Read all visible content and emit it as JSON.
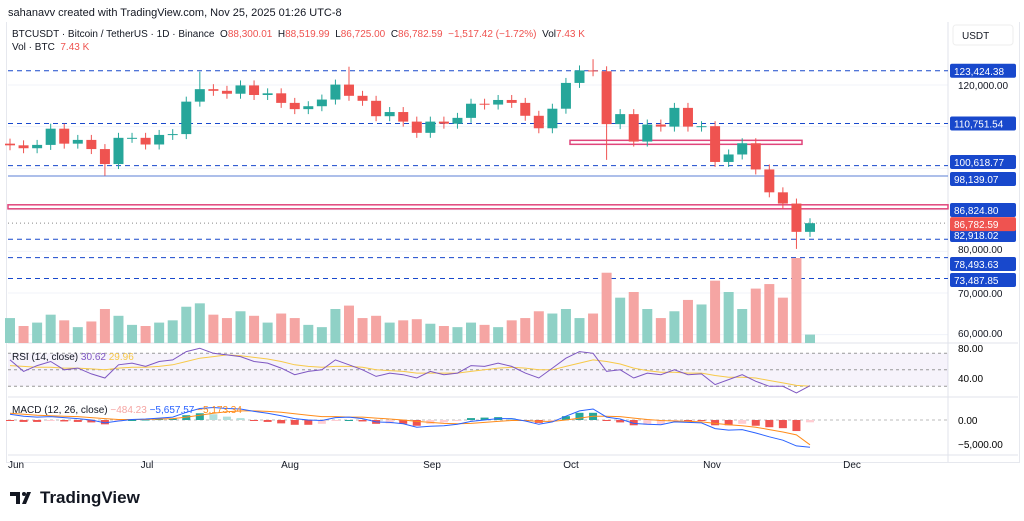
{
  "credit": "sahanavv created with TradingView.com, Nov 25, 2025 01:26 UTC-8",
  "legend": {
    "symbol": "BTCUSDT · Bitcoin / TetherUS · 1D · Binance",
    "o_label": "O",
    "o": "88,300.01",
    "h_label": "H",
    "h": "88,519.99",
    "l_label": "L",
    "l": "86,725.00",
    "c_label": "C",
    "c": "86,782.59",
    "change": "−1,517.42 (−1.72%)",
    "vol_label": "Vol",
    "vol": "7.43 K",
    "vol2_label": "Vol · BTC",
    "vol2": "7.43 K"
  },
  "logo": "TradingView",
  "colors": {
    "up": "#26a69a",
    "down": "#ef5350",
    "vol_up": "#8fd1c6",
    "vol_down": "#f5a5a3",
    "level": "#1848cc",
    "rsi": "#7e57c2",
    "rsi_ma": "#f7c948",
    "macd": "#2962ff",
    "signal": "#ff8c1a",
    "zone": "#e0457b"
  },
  "chart_data": {
    "type": "candlestick",
    "currency": "USDT",
    "x_ticks": [
      "Jun",
      "Jul",
      "Aug",
      "Sep",
      "Oct",
      "Nov",
      "Dec"
    ],
    "y_ticks": [
      "120,000.00",
      "80,000.00",
      "70,000.00",
      "60,000.00"
    ],
    "ylim": [
      58000,
      128000
    ],
    "closes": [
      105.5,
      104.8,
      105.6,
      109.5,
      105.9,
      106.8,
      104.6,
      101.0,
      107.3,
      107.3,
      105.7,
      108.0,
      108.2,
      116.0,
      119.0,
      118.6,
      117.9,
      119.9,
      117.6,
      118.0,
      115.7,
      114.2,
      114.9,
      116.5,
      120.1,
      117.4,
      116.2,
      112.5,
      113.5,
      111.2,
      108.5,
      111.2,
      110.7,
      112.1,
      115.5,
      115.3,
      116.4,
      115.7,
      112.6,
      109.6,
      114.3,
      120.5,
      123.5,
      123.3,
      110.6,
      113.0,
      106.4,
      110.5,
      110.0,
      114.5,
      110.0,
      110.1,
      101.5,
      103.3,
      106.0,
      99.7,
      94.2,
      91.5,
      84.7,
      86.78
    ],
    "wick_extremes": [
      {
        "index": 7,
        "low": 98.2
      },
      {
        "index": 14,
        "high": 123.2
      },
      {
        "index": 25,
        "high": 124.4
      },
      {
        "index": 43,
        "high": 126.2
      },
      {
        "index": 44,
        "low": 102.0
      },
      {
        "index": 58,
        "low": 80.6
      }
    ],
    "price_unit": "thousand USDT",
    "volume": [
      22,
      15,
      18,
      25,
      20,
      14,
      19,
      30,
      24,
      16,
      15,
      18,
      20,
      32,
      35,
      25,
      22,
      28,
      24,
      18,
      26,
      22,
      16,
      14,
      30,
      33,
      22,
      24,
      18,
      20,
      21,
      17,
      15,
      14,
      18,
      16,
      14,
      20,
      22,
      28,
      26,
      30,
      22,
      26,
      62,
      40,
      45,
      30,
      22,
      28,
      38,
      34,
      55,
      45,
      30,
      48,
      52,
      40,
      75,
      7.43
    ],
    "levels": [
      {
        "value": 123424.38,
        "label": "123,424.38",
        "style": "dashed"
      },
      {
        "value": 110751.54,
        "label": "110,751.54",
        "style": "dashed"
      },
      {
        "value": 100618.77,
        "label": "100,618.77",
        "style": "dashed"
      },
      {
        "value": 98139.07,
        "label": "98,139.07",
        "style": "solid"
      },
      {
        "value": 86824.8,
        "label": "86,824.80",
        "style": "zone"
      },
      {
        "value": 82918.02,
        "label": "82,918.02",
        "style": "dashed"
      },
      {
        "value": 78493.63,
        "label": "78,493.63",
        "style": "dashed"
      },
      {
        "value": 73487.85,
        "label": "73,487.85",
        "style": "dashed"
      }
    ],
    "last_price": {
      "value": 86782.59,
      "label": "86,782.59"
    },
    "rsi": {
      "title": "RSI (14, close)",
      "value": "30.62",
      "ma_value": "29.96",
      "tick_labels": [
        "80.00",
        "40.00"
      ],
      "ylim": [
        20,
        90
      ],
      "values": [
        62,
        48,
        55,
        60,
        50,
        52,
        45,
        40,
        56,
        58,
        54,
        60,
        62,
        72,
        76,
        70,
        68,
        66,
        60,
        58,
        52,
        44,
        48,
        50,
        62,
        56,
        50,
        42,
        46,
        44,
        40,
        48,
        44,
        46,
        55,
        54,
        58,
        54,
        46,
        40,
        52,
        64,
        72,
        70,
        48,
        50,
        40,
        46,
        44,
        50,
        44,
        45,
        32,
        38,
        44,
        36,
        30,
        30,
        22,
        30.62
      ],
      "ma": [
        55,
        54,
        53,
        53,
        52,
        52,
        51,
        50,
        52,
        53,
        53,
        54,
        56,
        60,
        64,
        66,
        68,
        67,
        65,
        63,
        60,
        56,
        54,
        53,
        54,
        54,
        53,
        50,
        49,
        48,
        46,
        46,
        46,
        46,
        48,
        50,
        52,
        53,
        52,
        50,
        50,
        54,
        58,
        62,
        60,
        57,
        52,
        49,
        47,
        47,
        46,
        46,
        43,
        41,
        41,
        40,
        37,
        34,
        31,
        29.96
      ]
    },
    "macd": {
      "title": "MACD (12, 26, close)",
      "hist_value": "−484.23",
      "macd_value": "−5,657.57",
      "signal_value": "−5,173.34",
      "tick_labels": [
        "0.00",
        "−5,000.00"
      ],
      "ylim": [
        -7000,
        3000
      ],
      "macd": [
        1200,
        800,
        600,
        700,
        500,
        300,
        0,
        -600,
        -200,
        100,
        200,
        400,
        600,
        1600,
        2400,
        2600,
        2400,
        2300,
        1800,
        1400,
        900,
        300,
        0,
        -100,
        500,
        600,
        300,
        -400,
        -500,
        -800,
        -1500,
        -1300,
        -1200,
        -900,
        -300,
        0,
        300,
        300,
        -200,
        -900,
        -400,
        800,
        1900,
        2300,
        600,
        200,
        -700,
        -900,
        -1000,
        -400,
        -500,
        -600,
        -1800,
        -2100,
        -2000,
        -2700,
        -3500,
        -4200,
        -5400,
        -5657.57
      ],
      "signal": [
        1400,
        1200,
        1000,
        900,
        800,
        700,
        500,
        300,
        100,
        100,
        100,
        200,
        300,
        600,
        1000,
        1400,
        1700,
        1900,
        1900,
        1800,
        1600,
        1300,
        1000,
        700,
        700,
        600,
        600,
        400,
        200,
        0,
        -300,
        -500,
        -700,
        -800,
        -700,
        -500,
        -300,
        -100,
        -100,
        -300,
        -300,
        0,
        400,
        800,
        800,
        700,
        400,
        100,
        -100,
        -200,
        -300,
        -400,
        -700,
        -1000,
        -1200,
        -1500,
        -2000,
        -2500,
        -3100,
        -5173.34
      ]
    }
  }
}
